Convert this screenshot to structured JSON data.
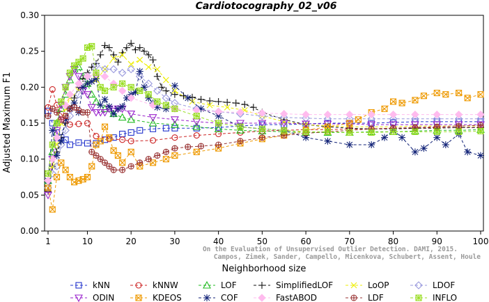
{
  "chart_data": {
    "type": "line",
    "title": "Cardiotocography_02_v06",
    "xlabel": "Neighborhood size",
    "ylabel": "Adjusted Maximum F1",
    "xlim": [
      1,
      100
    ],
    "ylim": [
      0.0,
      0.3
    ],
    "xticks": [
      "1",
      "10",
      "20",
      "30",
      "40",
      "50",
      "60",
      "70",
      "80",
      "90",
      "100"
    ],
    "yticks": [
      "0.00",
      "0.05",
      "0.10",
      "0.15",
      "0.20",
      "0.25",
      "0.30"
    ],
    "grid": false,
    "legend_position": "bottom",
    "watermark": [
      "Campos, Zimek, Sander, Campello, Micenkova, Schubert, Assent, Houle",
      "On the Evaluation of Unsupervised Outlier Detection. DAMI, 2015."
    ],
    "series": [
      {
        "name": "kNN",
        "color": "#2233cc",
        "marker": "square",
        "x": [
          1,
          2,
          3,
          4,
          5,
          6,
          8,
          10,
          12,
          14,
          16,
          18,
          20,
          22,
          25,
          28,
          30,
          35,
          40,
          45,
          50,
          55,
          60,
          65,
          70,
          75,
          80,
          85,
          90,
          95,
          100
        ],
        "y": [
          0.167,
          0.15,
          0.137,
          0.13,
          0.127,
          0.12,
          0.123,
          0.122,
          0.122,
          0.127,
          0.13,
          0.135,
          0.137,
          0.14,
          0.142,
          0.143,
          0.143,
          0.143,
          0.144,
          0.146,
          0.148,
          0.148,
          0.149,
          0.15,
          0.15,
          0.15,
          0.151,
          0.152,
          0.152,
          0.152,
          0.152
        ]
      },
      {
        "name": "kNNW",
        "color": "#cc2222",
        "marker": "circle",
        "x": [
          1,
          2,
          3,
          4,
          5,
          6,
          8,
          10,
          12,
          15,
          18,
          20,
          25,
          30,
          35,
          40,
          45,
          50,
          55,
          60,
          65,
          70,
          75,
          80,
          85,
          90,
          95,
          100
        ],
        "y": [
          0.172,
          0.197,
          0.175,
          0.163,
          0.154,
          0.148,
          0.149,
          0.15,
          0.132,
          0.128,
          0.127,
          0.125,
          0.126,
          0.13,
          0.133,
          0.135,
          0.137,
          0.139,
          0.14,
          0.141,
          0.141,
          0.142,
          0.142,
          0.143,
          0.143,
          0.144,
          0.144,
          0.144
        ]
      },
      {
        "name": "LOF",
        "color": "#22bb22",
        "marker": "triangle",
        "x": [
          1,
          2,
          3,
          4,
          5,
          6,
          7,
          8,
          9,
          10,
          11,
          12,
          14,
          16,
          18,
          20,
          25,
          30,
          35,
          40,
          45,
          50,
          55,
          60,
          65,
          70,
          75,
          80,
          85,
          90,
          95,
          100
        ],
        "y": [
          0.07,
          0.11,
          0.15,
          0.17,
          0.19,
          0.21,
          0.225,
          0.228,
          0.215,
          0.205,
          0.19,
          0.18,
          0.17,
          0.163,
          0.158,
          0.155,
          0.15,
          0.148,
          0.145,
          0.142,
          0.14,
          0.139,
          0.138,
          0.137,
          0.137,
          0.137,
          0.138,
          0.138,
          0.139,
          0.14,
          0.14,
          0.141
        ]
      },
      {
        "name": "SimplifiedLOF",
        "color": "#111111",
        "marker": "plus",
        "x": [
          1,
          2,
          3,
          4,
          5,
          6,
          7,
          8,
          9,
          10,
          11,
          12,
          13,
          14,
          15,
          16,
          17,
          18,
          19,
          20,
          21,
          22,
          23,
          24,
          25,
          26,
          27,
          28,
          30,
          32,
          34,
          36,
          38,
          40,
          42,
          44,
          46,
          48,
          50,
          55,
          60,
          65,
          70,
          75,
          80,
          85,
          90,
          95,
          100
        ],
        "y": [
          0.055,
          0.09,
          0.11,
          0.13,
          0.15,
          0.17,
          0.185,
          0.2,
          0.212,
          0.22,
          0.228,
          0.233,
          0.245,
          0.258,
          0.255,
          0.245,
          0.235,
          0.248,
          0.255,
          0.261,
          0.252,
          0.255,
          0.25,
          0.245,
          0.238,
          0.215,
          0.2,
          0.195,
          0.19,
          0.188,
          0.186,
          0.183,
          0.181,
          0.18,
          0.179,
          0.178,
          0.176,
          0.172,
          0.165,
          0.155,
          0.148,
          0.145,
          0.143,
          0.142,
          0.142,
          0.143,
          0.143,
          0.144,
          0.144
        ]
      },
      {
        "name": "LoOP",
        "color": "#eeee00",
        "marker": "cross",
        "x": [
          1,
          2,
          3,
          4,
          5,
          6,
          8,
          10,
          12,
          14,
          16,
          18,
          20,
          22,
          24,
          26,
          28,
          30,
          34,
          38,
          42,
          46,
          50,
          55,
          60,
          65,
          70,
          75,
          80,
          85,
          90,
          95,
          100
        ],
        "y": [
          0.06,
          0.09,
          0.12,
          0.15,
          0.17,
          0.185,
          0.195,
          0.205,
          0.21,
          0.225,
          0.24,
          0.245,
          0.232,
          0.238,
          0.228,
          0.225,
          0.21,
          0.195,
          0.18,
          0.175,
          0.172,
          0.168,
          0.16,
          0.152,
          0.148,
          0.146,
          0.145,
          0.145,
          0.145,
          0.146,
          0.146,
          0.146,
          0.146
        ]
      },
      {
        "name": "LDOF",
        "color": "#9999dd",
        "marker": "diamond",
        "x": [
          1,
          2,
          3,
          4,
          5,
          6,
          8,
          10,
          12,
          14,
          16,
          18,
          20,
          22,
          24,
          26,
          28,
          30,
          35,
          40,
          45,
          50,
          55,
          60,
          65,
          70,
          75,
          80,
          85,
          90,
          95,
          100
        ],
        "y": [
          0.06,
          0.08,
          0.09,
          0.12,
          0.14,
          0.16,
          0.19,
          0.215,
          0.23,
          0.225,
          0.225,
          0.22,
          0.225,
          0.215,
          0.205,
          0.195,
          0.185,
          0.178,
          0.17,
          0.166,
          0.163,
          0.16,
          0.158,
          0.157,
          0.156,
          0.156,
          0.156,
          0.156,
          0.156,
          0.156,
          0.156,
          0.156
        ]
      },
      {
        "name": "ODIN",
        "color": "#9922cc",
        "marker": "triangle-down",
        "x": [
          1,
          2,
          3,
          4,
          5,
          6,
          7,
          8,
          9,
          10,
          11,
          12,
          13,
          14,
          15,
          16,
          17,
          18,
          20,
          25,
          30,
          35,
          40,
          45,
          50,
          55,
          60,
          65,
          70,
          75,
          80,
          85,
          90,
          95,
          100
        ],
        "y": [
          0.05,
          0.1,
          0.14,
          0.175,
          0.2,
          0.215,
          0.225,
          0.215,
          0.195,
          0.19,
          0.172,
          0.165,
          0.165,
          0.165,
          0.17,
          0.167,
          0.17,
          0.17,
          0.163,
          0.158,
          0.155,
          0.152,
          0.15,
          0.15,
          0.15,
          0.15,
          0.149,
          0.149,
          0.149,
          0.148,
          0.148,
          0.148,
          0.148,
          0.148,
          0.148
        ]
      },
      {
        "name": "KDEOS",
        "color": "#ee9900",
        "marker": "square-x",
        "x": [
          1,
          2,
          3,
          4,
          5,
          6,
          7,
          8,
          9,
          10,
          11,
          12,
          13,
          14,
          15,
          16,
          17,
          18,
          20,
          22,
          25,
          28,
          30,
          35,
          40,
          45,
          50,
          55,
          60,
          65,
          70,
          72,
          75,
          78,
          80,
          82,
          85,
          87,
          90,
          92,
          95,
          97,
          100
        ],
        "y": [
          0.06,
          0.03,
          0.075,
          0.095,
          0.085,
          0.075,
          0.068,
          0.07,
          0.072,
          0.075,
          0.09,
          0.12,
          0.125,
          0.145,
          0.13,
          0.112,
          0.105,
          0.095,
          0.11,
          0.09,
          0.095,
          0.1,
          0.105,
          0.11,
          0.115,
          0.122,
          0.128,
          0.133,
          0.14,
          0.145,
          0.15,
          0.155,
          0.165,
          0.17,
          0.18,
          0.178,
          0.182,
          0.188,
          0.192,
          0.19,
          0.192,
          0.185,
          0.19
        ]
      },
      {
        "name": "COF",
        "color": "#112277",
        "marker": "asterisk",
        "x": [
          1,
          2,
          3,
          4,
          5,
          6,
          7,
          8,
          9,
          10,
          11,
          12,
          13,
          14,
          15,
          16,
          17,
          18,
          19,
          20,
          21,
          22,
          23,
          24,
          25,
          26,
          28,
          30,
          33,
          36,
          40,
          45,
          50,
          55,
          60,
          65,
          70,
          75,
          78,
          80,
          82,
          85,
          87,
          90,
          92,
          95,
          97,
          100
        ],
        "y": [
          0.07,
          0.14,
          0.105,
          0.125,
          0.155,
          0.17,
          0.178,
          0.165,
          0.2,
          0.205,
          0.208,
          0.212,
          0.175,
          0.183,
          0.173,
          0.163,
          0.17,
          0.173,
          0.185,
          0.19,
          0.193,
          0.222,
          0.2,
          0.185,
          0.178,
          0.172,
          0.17,
          0.202,
          0.185,
          0.17,
          0.16,
          0.145,
          0.142,
          0.14,
          0.13,
          0.125,
          0.12,
          0.12,
          0.13,
          0.14,
          0.13,
          0.11,
          0.115,
          0.13,
          0.12,
          0.135,
          0.11,
          0.105
        ]
      },
      {
        "name": "FastABOD",
        "color": "#ffbbee",
        "marker": "diamond-filled",
        "x": [
          1,
          2,
          3,
          4,
          5,
          6,
          8,
          10,
          12,
          14,
          16,
          18,
          20,
          25,
          30,
          35,
          40,
          45,
          50,
          55,
          60,
          65,
          70,
          75,
          80,
          85,
          90,
          95,
          100
        ],
        "y": [
          0.07,
          0.1,
          0.13,
          0.155,
          0.175,
          0.19,
          0.205,
          0.215,
          0.218,
          0.215,
          0.205,
          0.195,
          0.185,
          0.175,
          0.17,
          0.168,
          0.166,
          0.165,
          0.164,
          0.163,
          0.162,
          0.162,
          0.162,
          0.162,
          0.162,
          0.162,
          0.162,
          0.162,
          0.162
        ]
      },
      {
        "name": "LDF",
        "color": "#993333",
        "marker": "circle-plus",
        "x": [
          1,
          2,
          3,
          4,
          5,
          6,
          7,
          8,
          9,
          10,
          11,
          12,
          13,
          14,
          15,
          16,
          18,
          20,
          22,
          24,
          26,
          28,
          30,
          33,
          36,
          40,
          45,
          50,
          55,
          60,
          65,
          70,
          75,
          80,
          85,
          90,
          95,
          100
        ],
        "y": [
          0.16,
          0.17,
          0.165,
          0.155,
          0.16,
          0.17,
          0.172,
          0.168,
          0.165,
          0.165,
          0.11,
          0.105,
          0.1,
          0.095,
          0.09,
          0.085,
          0.085,
          0.09,
          0.095,
          0.1,
          0.105,
          0.11,
          0.115,
          0.117,
          0.118,
          0.12,
          0.125,
          0.13,
          0.133,
          0.136,
          0.138,
          0.14,
          0.142,
          0.143,
          0.144,
          0.145,
          0.146,
          0.147
        ]
      },
      {
        "name": "INFLO",
        "color": "#99dd22",
        "marker": "star-box",
        "x": [
          1,
          2,
          3,
          4,
          5,
          6,
          7,
          8,
          9,
          10,
          11,
          12,
          13,
          14,
          16,
          18,
          20,
          22,
          24,
          26,
          28,
          30,
          35,
          40,
          45,
          50,
          55,
          60,
          65,
          70,
          75,
          80,
          85,
          90,
          95,
          100
        ],
        "y": [
          0.08,
          0.12,
          0.15,
          0.18,
          0.2,
          0.22,
          0.23,
          0.235,
          0.24,
          0.255,
          0.257,
          0.22,
          0.2,
          0.195,
          0.2,
          0.205,
          0.2,
          0.195,
          0.19,
          0.18,
          0.175,
          0.17,
          0.16,
          0.15,
          0.145,
          0.142,
          0.14,
          0.138,
          0.138,
          0.137,
          0.137,
          0.138,
          0.138,
          0.138,
          0.138,
          0.139
        ]
      }
    ]
  }
}
